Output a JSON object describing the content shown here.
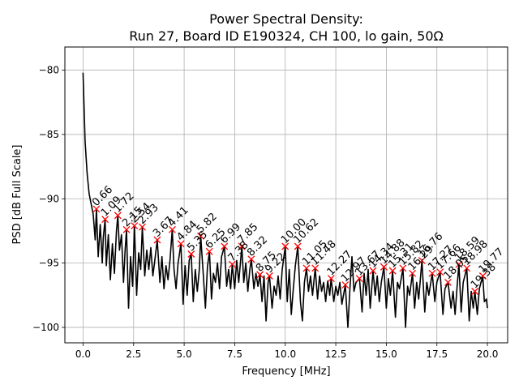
{
  "chart_data": {
    "type": "line",
    "title_line1": "Power Spectral Density:",
    "title_line2": "Run 27, Board ID E190324, CH 100, lo gain, 50Ω",
    "xlabel": "Frequency [MHz]",
    "ylabel": "PSD [dB Full Scale]",
    "xlim": [
      -0.9,
      21.0
    ],
    "ylim": [
      -101.2,
      -78.2
    ],
    "xticks": [
      0.0,
      2.5,
      5.0,
      7.5,
      10.0,
      12.5,
      15.0,
      17.5,
      20.0
    ],
    "xtick_labels": [
      "0.0",
      "2.5",
      "5.0",
      "7.5",
      "10.0",
      "12.5",
      "15.0",
      "17.5",
      "20.0"
    ],
    "yticks": [
      -80,
      -85,
      -90,
      -95,
      -100
    ],
    "ytick_labels": [
      "−80",
      "−85",
      "−90",
      "−95",
      "−100"
    ],
    "grid": true,
    "line_color": "#000000",
    "marker_color": "#ff0000",
    "series": [
      {
        "name": "PSD",
        "style": "line",
        "x": [
          0.0,
          0.1,
          0.2,
          0.3,
          0.4,
          0.5,
          0.6,
          0.66,
          0.75,
          0.85,
          0.95,
          1.0,
          1.09,
          1.15,
          1.25,
          1.35,
          1.45,
          1.55,
          1.65,
          1.72,
          1.8,
          1.9,
          2.0,
          2.08,
          2.15,
          2.25,
          2.35,
          2.45,
          2.54,
          2.65,
          2.75,
          2.85,
          2.93,
          3.05,
          3.15,
          3.25,
          3.35,
          3.45,
          3.55,
          3.67,
          3.8,
          3.9,
          4.0,
          4.1,
          4.2,
          4.3,
          4.41,
          4.5,
          4.6,
          4.7,
          4.84,
          4.95,
          5.05,
          5.15,
          5.25,
          5.35,
          5.45,
          5.55,
          5.65,
          5.75,
          5.82,
          5.95,
          6.05,
          6.15,
          6.25,
          6.35,
          6.45,
          6.55,
          6.65,
          6.75,
          6.85,
          6.99,
          7.1,
          7.2,
          7.3,
          7.38,
          7.5,
          7.6,
          7.7,
          7.85,
          7.95,
          8.05,
          8.15,
          8.25,
          8.32,
          8.45,
          8.55,
          8.65,
          8.75,
          8.85,
          8.95,
          9.05,
          9.15,
          9.22,
          9.35,
          9.45,
          9.55,
          9.65,
          9.75,
          9.85,
          10.0,
          10.1,
          10.2,
          10.3,
          10.4,
          10.5,
          10.62,
          10.75,
          10.85,
          10.95,
          11.05,
          11.15,
          11.25,
          11.35,
          11.48,
          11.6,
          11.7,
          11.8,
          11.9,
          12.0,
          12.1,
          12.2,
          12.27,
          12.4,
          12.5,
          12.6,
          12.7,
          12.8,
          12.97,
          13.1,
          13.2,
          13.3,
          13.4,
          13.5,
          13.67,
          13.8,
          13.9,
          14.0,
          14.1,
          14.2,
          14.34,
          14.45,
          14.55,
          14.65,
          14.75,
          14.88,
          15.0,
          15.1,
          15.2,
          15.31,
          15.45,
          15.55,
          15.65,
          15.82,
          15.95,
          16.05,
          16.15,
          16.29,
          16.4,
          16.5,
          16.6,
          16.76,
          16.9,
          17.0,
          17.1,
          17.27,
          17.4,
          17.5,
          17.66,
          17.8,
          17.9,
          18.05,
          18.2,
          18.3,
          18.4,
          18.5,
          18.59,
          18.7,
          18.8,
          18.98,
          19.1,
          19.2,
          19.3,
          19.38,
          19.5,
          19.6,
          19.77,
          19.85,
          19.95,
          20.0
        ],
        "y": [
          -80.2,
          -85.5,
          -88.0,
          -89.6,
          -90.4,
          -91.2,
          -93.2,
          -90.8,
          -94.5,
          -92.0,
          -95.0,
          -93.0,
          -91.6,
          -95.2,
          -92.8,
          -96.3,
          -93.5,
          -95.8,
          -92.5,
          -91.3,
          -94.0,
          -92.8,
          -96.5,
          -94.0,
          -92.4,
          -98.5,
          -94.5,
          -96.8,
          -92.1,
          -97.5,
          -94.2,
          -95.5,
          -92.2,
          -96.0,
          -94.0,
          -95.5,
          -93.8,
          -96.0,
          -94.8,
          -93.2,
          -96.5,
          -94.5,
          -97.0,
          -95.2,
          -96.3,
          -94.8,
          -92.4,
          -95.5,
          -97.0,
          -95.0,
          -93.5,
          -98.2,
          -95.2,
          -97.5,
          -94.8,
          -94.3,
          -98.0,
          -95.5,
          -97.2,
          -95.5,
          -92.9,
          -96.0,
          -98.5,
          -95.3,
          -94.1,
          -97.8,
          -95.8,
          -96.5,
          -95.0,
          -97.0,
          -94.5,
          -93.7,
          -96.8,
          -95.5,
          -97.0,
          -95.1,
          -97.0,
          -94.8,
          -96.5,
          -93.7,
          -96.5,
          -95.0,
          -97.2,
          -95.5,
          -94.7,
          -97.0,
          -95.8,
          -96.8,
          -95.9,
          -98.0,
          -96.0,
          -99.5,
          -96.5,
          -96.0,
          -98.5,
          -96.8,
          -97.5,
          -96.0,
          -97.8,
          -95.5,
          -93.7,
          -98.0,
          -95.5,
          -99.0,
          -97.0,
          -95.2,
          -93.7,
          -98.0,
          -99.5,
          -96.5,
          -95.4,
          -97.2,
          -96.0,
          -97.5,
          -95.4,
          -97.8,
          -96.0,
          -97.2,
          -96.5,
          -98.0,
          -96.4,
          -97.5,
          -96.2,
          -98.0,
          -96.8,
          -97.5,
          -96.5,
          -98.2,
          -96.7,
          -100.0,
          -97.0,
          -94.5,
          -97.2,
          -96.5,
          -96.2,
          -98.8,
          -95.8,
          -97.5,
          -95.5,
          -98.5,
          -95.6,
          -97.5,
          -96.0,
          -98.0,
          -96.5,
          -95.3,
          -98.5,
          -96.2,
          -97.5,
          -95.6,
          -99.2,
          -96.5,
          -97.0,
          -95.4,
          -100.0,
          -96.8,
          -97.5,
          -95.8,
          -98.5,
          -96.5,
          -97.8,
          -94.8,
          -98.8,
          -96.5,
          -97.5,
          -95.8,
          -98.0,
          -96.5,
          -95.7,
          -99.0,
          -97.0,
          -96.5,
          -98.5,
          -97.2,
          -99.0,
          -96.8,
          -95.1,
          -98.8,
          -96.5,
          -95.4,
          -99.5,
          -97.2,
          -98.5,
          -97.2,
          -99.0,
          -97.0,
          -96.0,
          -98.0,
          -97.8,
          -98.5
        ]
      },
      {
        "name": "peaks",
        "style": "markers",
        "x": [
          0.66,
          1.09,
          1.72,
          2.15,
          2.54,
          2.93,
          3.67,
          4.41,
          4.84,
          5.35,
          5.82,
          6.25,
          6.99,
          7.38,
          7.85,
          8.32,
          8.75,
          9.22,
          10.0,
          10.62,
          11.05,
          11.48,
          12.27,
          12.97,
          13.67,
          14.34,
          14.88,
          15.31,
          15.82,
          16.29,
          16.76,
          17.27,
          17.66,
          18.05,
          18.59,
          18.98,
          19.38,
          19.77
        ],
        "y": [
          -90.8,
          -91.6,
          -91.3,
          -92.4,
          -92.1,
          -92.2,
          -93.2,
          -92.4,
          -93.5,
          -94.3,
          -92.9,
          -94.1,
          -93.7,
          -95.1,
          -93.7,
          -94.7,
          -95.9,
          -96.0,
          -93.7,
          -93.7,
          -95.4,
          -95.4,
          -96.2,
          -96.7,
          -96.2,
          -95.6,
          -95.3,
          -95.6,
          -95.4,
          -95.8,
          -94.8,
          -95.8,
          -95.7,
          -96.5,
          -95.1,
          -95.4,
          -97.2,
          -96.0
        ],
        "labels": [
          "0.66",
          "1.09",
          "1.72",
          "2.15",
          "2.54",
          "2.93",
          "3.67",
          "4.41",
          "4.84",
          "5.35",
          "5.82",
          "6.25",
          "6.99",
          "7.38",
          "7.85",
          "8.32",
          "8.75",
          "9.22",
          "10.00",
          "10.62",
          "11.05",
          "11.48",
          "12.27",
          "12.97",
          "13.67",
          "14.34",
          "14.88",
          "15.31",
          "15.82",
          "16.29",
          "16.76",
          "17.27",
          "17.66",
          "18.05",
          "18.59",
          "18.98",
          "19.38",
          "19.77"
        ]
      }
    ]
  }
}
